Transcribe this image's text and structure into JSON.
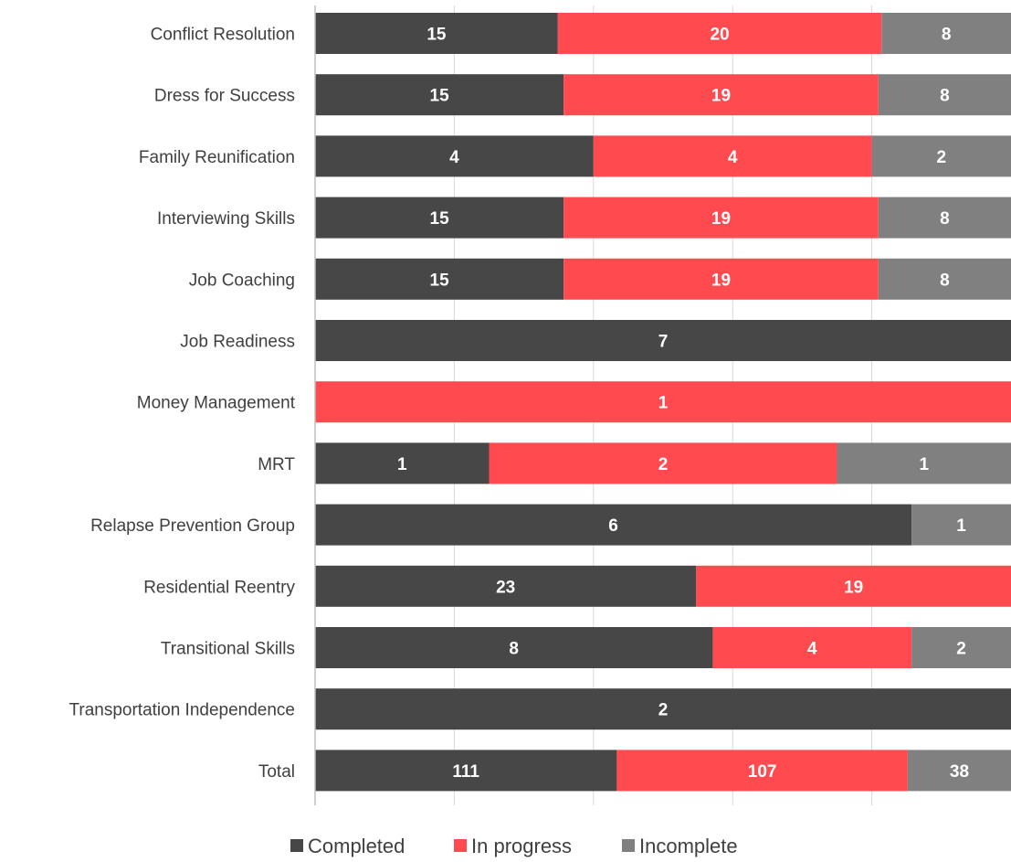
{
  "chart_data": {
    "type": "bar",
    "orientation": "horizontal",
    "stacking": "percent",
    "categories": [
      "Conflict Resolution",
      "Dress for Success",
      "Family Reunification",
      "Interviewing Skills",
      "Job Coaching",
      "Job Readiness",
      "Money Management",
      "MRT",
      "Relapse Prevention Group",
      "Residential Reentry",
      "Transitional Skills",
      "Transportation Independence",
      "Total"
    ],
    "series": [
      {
        "name": "Completed",
        "color": "#474747",
        "values": [
          15,
          15,
          4,
          15,
          15,
          7,
          0,
          1,
          6,
          23,
          8,
          2,
          111
        ]
      },
      {
        "name": "In progress",
        "color": "#ff4a4f",
        "values": [
          20,
          19,
          4,
          19,
          19,
          0,
          1,
          2,
          0,
          19,
          4,
          0,
          107
        ]
      },
      {
        "name": "Incomplete",
        "color": "#808080",
        "values": [
          8,
          8,
          2,
          8,
          8,
          0,
          0,
          1,
          1,
          0,
          2,
          0,
          38
        ]
      }
    ],
    "xlim": [
      0,
      1
    ],
    "grid": true,
    "legend": "bottom",
    "title": "",
    "xlabel": "",
    "ylabel": ""
  }
}
